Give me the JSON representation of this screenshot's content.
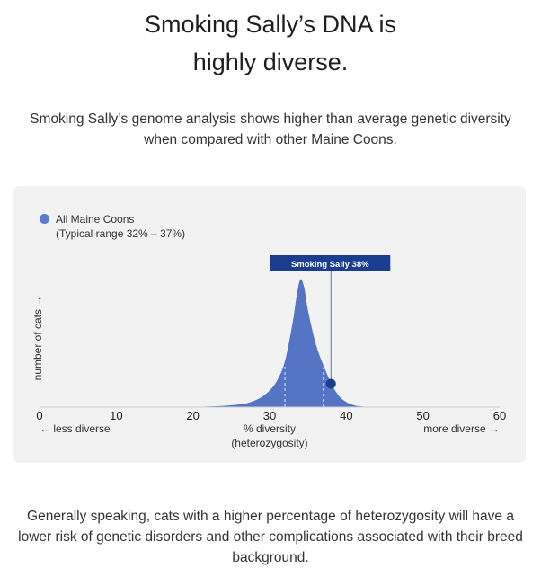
{
  "header": {
    "title_line1": "Smoking Sally’s DNA is",
    "title_line2": "highly diverse.",
    "subtitle": "Smoking Sally’s genome analysis shows higher than average genetic diversity when compared with other Maine Coons."
  },
  "legend": {
    "label": "All Maine Coons",
    "range_label": "(Typical range 32% – 37%)"
  },
  "marker": {
    "label": "Smoking Sally 38%"
  },
  "footer": {
    "text": "Generally speaking, cats with a higher percentage of heterozygosity will have a lower risk of genetic disorders and other complications associated with their breed background."
  },
  "colors": {
    "distribution": "#5574c4",
    "marker": "#1a3d8f",
    "card": "#f2f2f2"
  },
  "chart_data": {
    "type": "area",
    "xlabel_line1": "% diversity",
    "xlabel_line2": "(heterozygosity)",
    "ylabel": "number of cats →",
    "x_left_note": "← less diverse",
    "x_right_note": "more diverse →",
    "xlim": [
      0,
      60
    ],
    "x_ticks": [
      0,
      10,
      20,
      30,
      40,
      50,
      60
    ],
    "typical_range": [
      32,
      37
    ],
    "marker_value": 38,
    "series": [
      {
        "x": [
          20,
          22,
          24,
          26,
          27,
          28,
          29,
          30,
          31,
          32,
          33,
          33.5,
          34,
          34.5,
          35,
          36,
          37,
          38,
          39,
          40,
          41,
          42,
          44
        ],
        "y": [
          0,
          0.005,
          0.01,
          0.02,
          0.03,
          0.05,
          0.08,
          0.13,
          0.21,
          0.36,
          0.66,
          0.86,
          1.0,
          0.94,
          0.76,
          0.5,
          0.33,
          0.19,
          0.09,
          0.04,
          0.015,
          0.005,
          0
        ]
      }
    ]
  }
}
